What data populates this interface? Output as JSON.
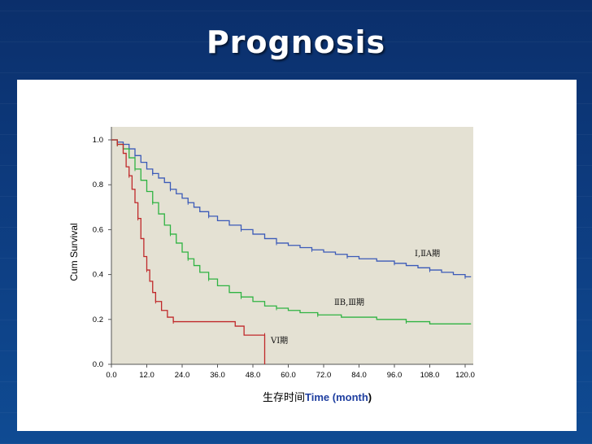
{
  "slide": {
    "title": "Prognosis"
  },
  "chart_data": {
    "type": "line",
    "step": true,
    "ylabel": "Cum Survival",
    "xlabel_cn": "生存时间",
    "xlabel_en": "Time (month",
    "xlabel_close": ")",
    "xlim": [
      0,
      120
    ],
    "ylim": [
      0,
      1
    ],
    "x_ticks": [
      "0.0",
      "12.0",
      "24.0",
      "36.0",
      "48.0",
      "60.0",
      "72.0",
      "84.0",
      "96.0",
      "108.0",
      "120.0"
    ],
    "y_ticks": [
      "0.0",
      "0.2",
      "0.4",
      "0.6",
      "0.8",
      "1.0"
    ],
    "plot_background": "#e4e1d3",
    "series": [
      {
        "name": "Ⅰ,ⅡA期",
        "color": "#3b5ab8",
        "points": [
          [
            0,
            1.0
          ],
          [
            2,
            0.99
          ],
          [
            4,
            0.98
          ],
          [
            6,
            0.96
          ],
          [
            8,
            0.93
          ],
          [
            10,
            0.9
          ],
          [
            12,
            0.87
          ],
          [
            14,
            0.85
          ],
          [
            16,
            0.83
          ],
          [
            18,
            0.81
          ],
          [
            20,
            0.78
          ],
          [
            22,
            0.76
          ],
          [
            24,
            0.74
          ],
          [
            26,
            0.72
          ],
          [
            28,
            0.7
          ],
          [
            30,
            0.68
          ],
          [
            33,
            0.66
          ],
          [
            36,
            0.64
          ],
          [
            40,
            0.62
          ],
          [
            44,
            0.6
          ],
          [
            48,
            0.58
          ],
          [
            52,
            0.56
          ],
          [
            56,
            0.54
          ],
          [
            60,
            0.53
          ],
          [
            64,
            0.52
          ],
          [
            68,
            0.51
          ],
          [
            72,
            0.5
          ],
          [
            76,
            0.49
          ],
          [
            80,
            0.48
          ],
          [
            84,
            0.47
          ],
          [
            90,
            0.46
          ],
          [
            96,
            0.45
          ],
          [
            100,
            0.44
          ],
          [
            104,
            0.43
          ],
          [
            108,
            0.42
          ],
          [
            112,
            0.41
          ],
          [
            116,
            0.4
          ],
          [
            120,
            0.39
          ],
          [
            122,
            0.39
          ]
        ]
      },
      {
        "name": "ⅡB,Ⅲ期",
        "color": "#2fb342",
        "points": [
          [
            0,
            1.0
          ],
          [
            2,
            0.98
          ],
          [
            4,
            0.96
          ],
          [
            6,
            0.92
          ],
          [
            8,
            0.87
          ],
          [
            10,
            0.82
          ],
          [
            12,
            0.77
          ],
          [
            14,
            0.72
          ],
          [
            16,
            0.67
          ],
          [
            18,
            0.62
          ],
          [
            20,
            0.58
          ],
          [
            22,
            0.54
          ],
          [
            24,
            0.5
          ],
          [
            26,
            0.47
          ],
          [
            28,
            0.44
          ],
          [
            30,
            0.41
          ],
          [
            33,
            0.38
          ],
          [
            36,
            0.35
          ],
          [
            40,
            0.32
          ],
          [
            44,
            0.3
          ],
          [
            48,
            0.28
          ],
          [
            52,
            0.26
          ],
          [
            56,
            0.25
          ],
          [
            60,
            0.24
          ],
          [
            64,
            0.23
          ],
          [
            70,
            0.22
          ],
          [
            78,
            0.21
          ],
          [
            90,
            0.2
          ],
          [
            100,
            0.19
          ],
          [
            108,
            0.18
          ],
          [
            122,
            0.18
          ]
        ]
      },
      {
        "name": "VI期",
        "color": "#c0282a",
        "points": [
          [
            0,
            1.0
          ],
          [
            2,
            0.98
          ],
          [
            4,
            0.94
          ],
          [
            5,
            0.88
          ],
          [
            6,
            0.84
          ],
          [
            7,
            0.78
          ],
          [
            8,
            0.72
          ],
          [
            9,
            0.65
          ],
          [
            10,
            0.56
          ],
          [
            11,
            0.48
          ],
          [
            12,
            0.42
          ],
          [
            13,
            0.37
          ],
          [
            14,
            0.32
          ],
          [
            15,
            0.28
          ],
          [
            17,
            0.24
          ],
          [
            19,
            0.21
          ],
          [
            21,
            0.19
          ],
          [
            42,
            0.17
          ],
          [
            45,
            0.13
          ],
          [
            52,
            0.13
          ],
          [
            52,
            0.0
          ]
        ]
      }
    ],
    "curve_labels": [
      "Ⅰ,ⅡA期",
      "ⅡB,Ⅲ期",
      "VI期"
    ]
  }
}
